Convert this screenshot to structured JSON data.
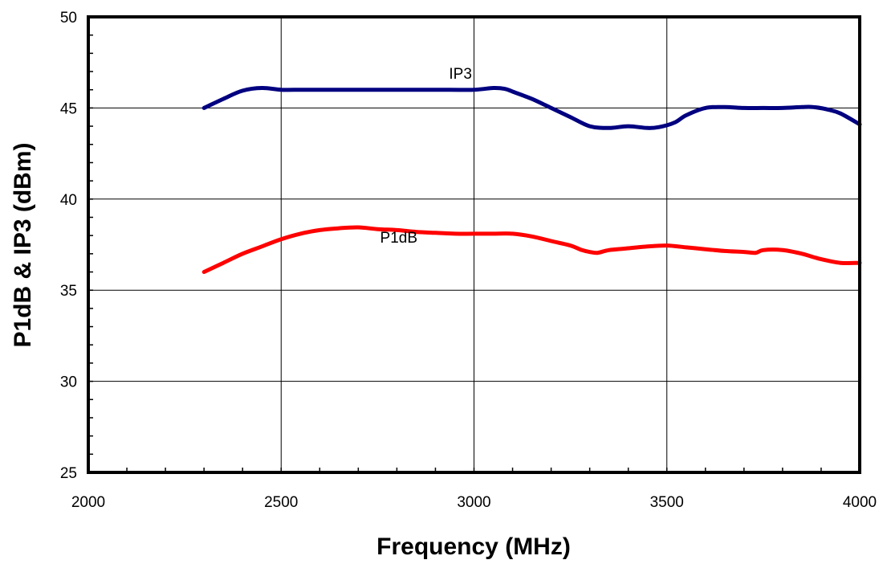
{
  "chart_data": {
    "type": "line",
    "title": "",
    "xlabel": "Frequency (MHz)",
    "ylabel": "P1dB & IP3 (dBm)",
    "xlim": [
      2000,
      4000
    ],
    "ylim": [
      25,
      50
    ],
    "x_ticks": [
      2000,
      2500,
      3000,
      3500,
      4000
    ],
    "y_ticks": [
      25,
      30,
      35,
      40,
      45,
      50
    ],
    "x_minor_step": 100,
    "y_minor_step": 1,
    "grid": true,
    "legend": "none",
    "series": [
      {
        "name": "IP3",
        "color": "#000080",
        "label_at": [
          2965,
          46.6
        ],
        "x": [
          2300,
          2350,
          2400,
          2450,
          2500,
          2550,
          2600,
          2700,
          2800,
          2900,
          3000,
          3050,
          3080,
          3100,
          3150,
          3200,
          3250,
          3300,
          3350,
          3400,
          3450,
          3480,
          3520,
          3550,
          3600,
          3650,
          3700,
          3750,
          3800,
          3850,
          3880,
          3920,
          3950,
          4000
        ],
        "values": [
          45.0,
          45.5,
          45.95,
          46.1,
          46.0,
          46.0,
          46.0,
          46.0,
          46.0,
          46.0,
          46.0,
          46.1,
          46.05,
          45.9,
          45.5,
          45.0,
          44.5,
          44.0,
          43.9,
          44.0,
          43.9,
          43.95,
          44.2,
          44.6,
          45.0,
          45.05,
          45.0,
          45.0,
          45.0,
          45.05,
          45.05,
          44.9,
          44.7,
          44.1
        ]
      },
      {
        "name": "P1dB",
        "color": "#ff0000",
        "label_at": [
          2805,
          37.6
        ],
        "x": [
          2300,
          2350,
          2400,
          2450,
          2500,
          2550,
          2600,
          2650,
          2700,
          2750,
          2800,
          2850,
          2900,
          2950,
          3000,
          3050,
          3100,
          3150,
          3200,
          3250,
          3280,
          3300,
          3320,
          3350,
          3400,
          3450,
          3500,
          3550,
          3600,
          3650,
          3700,
          3730,
          3750,
          3800,
          3850,
          3900,
          3950,
          4000
        ],
        "values": [
          36.0,
          36.5,
          37.0,
          37.4,
          37.8,
          38.1,
          38.3,
          38.4,
          38.45,
          38.35,
          38.3,
          38.2,
          38.15,
          38.1,
          38.1,
          38.1,
          38.1,
          37.95,
          37.7,
          37.45,
          37.2,
          37.1,
          37.05,
          37.2,
          37.3,
          37.4,
          37.45,
          37.35,
          37.25,
          37.15,
          37.1,
          37.05,
          37.2,
          37.2,
          37.0,
          36.7,
          36.5,
          36.5
        ]
      }
    ]
  }
}
